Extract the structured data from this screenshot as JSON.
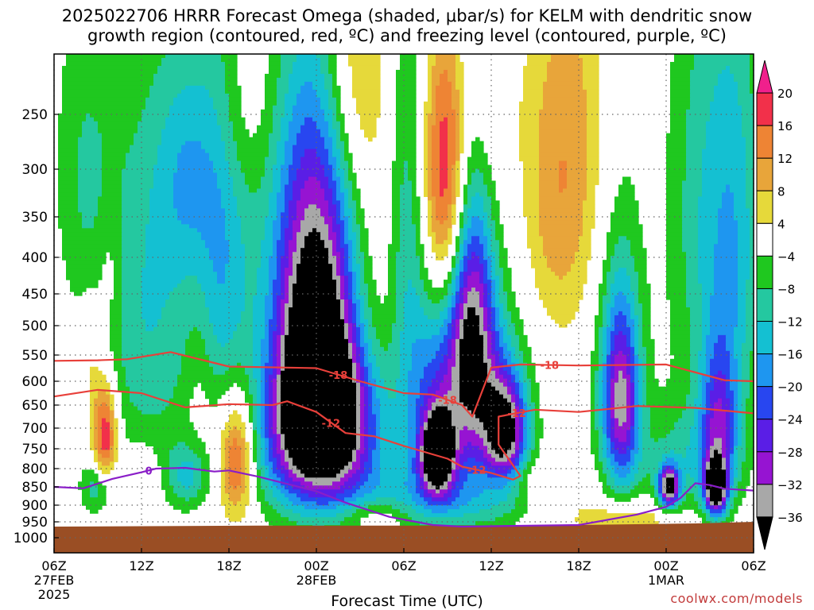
{
  "title": "2025022706 HRRR Forecast Omega (shaded, μbar/s) for KELM with dendritic snow\ngrowth region (contoured, red, ºC) and freezing level (contoured, purple, ºC)",
  "credit": "coolwx.com/models",
  "colors": {
    "ground": "#9a4e24",
    "isotherm": "#e8403a",
    "freezing": "#8a1ec8",
    "grid": "#666666"
  },
  "chart_data": {
    "type": "heatmap",
    "title": "2025022706 HRRR Forecast Omega (shaded, μbar/s) for KELM with dendritic snow growth region (contoured, red, ºC) and freezing level (contoured, purple, ºC)",
    "xlabel": "Forecast Time (UTC)",
    "ylabel": "",
    "x_ticks": [
      {
        "hour": 0,
        "label": "06Z",
        "sub1": "27FEB",
        "sub2": "2025"
      },
      {
        "hour": 6,
        "label": "12Z",
        "sub1": "",
        "sub2": ""
      },
      {
        "hour": 12,
        "label": "18Z",
        "sub1": "",
        "sub2": ""
      },
      {
        "hour": 18,
        "label": "00Z",
        "sub1": "28FEB",
        "sub2": ""
      },
      {
        "hour": 24,
        "label": "06Z",
        "sub1": "",
        "sub2": ""
      },
      {
        "hour": 30,
        "label": "12Z",
        "sub1": "",
        "sub2": ""
      },
      {
        "hour": 36,
        "label": "18Z",
        "sub1": "",
        "sub2": ""
      },
      {
        "hour": 42,
        "label": "00Z",
        "sub1": "1MAR",
        "sub2": ""
      },
      {
        "hour": 48,
        "label": "06Z",
        "sub1": "",
        "sub2": ""
      }
    ],
    "xlim": [
      0,
      48
    ],
    "y_axis": "pressure (hPa), reversed",
    "y_ticks": [
      250,
      300,
      350,
      400,
      450,
      500,
      550,
      600,
      650,
      700,
      750,
      800,
      850,
      900,
      950,
      1000
    ],
    "ylim": [
      1050,
      200
    ],
    "colorbar": {
      "labels": [
        "20",
        "16",
        "12",
        "8",
        "4",
        "−4",
        "−8",
        "−12",
        "−16",
        "−20",
        "−24",
        "−28",
        "−32",
        "−36"
      ],
      "bins": [
        {
          "lo": 20,
          "hi": null,
          "color": "#f0208c"
        },
        {
          "lo": 16,
          "hi": 20,
          "color": "#f2304a"
        },
        {
          "lo": 12,
          "hi": 16,
          "color": "#ee8434"
        },
        {
          "lo": 8,
          "hi": 12,
          "color": "#e8a53a"
        },
        {
          "lo": 4,
          "hi": 8,
          "color": "#e6d93a"
        },
        {
          "lo": -4,
          "hi": 4,
          "color": "#ffffff"
        },
        {
          "lo": -8,
          "hi": -4,
          "color": "#1fc81f"
        },
        {
          "lo": -12,
          "hi": -8,
          "color": "#24c8a0"
        },
        {
          "lo": -16,
          "hi": -12,
          "color": "#14c0d2"
        },
        {
          "lo": -20,
          "hi": -16,
          "color": "#1e96f0"
        },
        {
          "lo": -24,
          "hi": -20,
          "color": "#2846f0"
        },
        {
          "lo": -28,
          "hi": -24,
          "color": "#5a1ee6"
        },
        {
          "lo": -32,
          "hi": -28,
          "color": "#9614d2"
        },
        {
          "lo": -36,
          "hi": -32,
          "color": "#a8a8a8"
        },
        {
          "lo": null,
          "hi": -36,
          "color": "#000000"
        }
      ]
    },
    "omega_field": [
      {
        "hour": 18.7,
        "p": 670,
        "value": -40,
        "sx": 2.6,
        "sp": 140
      },
      {
        "hour": 18.0,
        "p": 540,
        "value": -22,
        "sx": 2.0,
        "sp": 160
      },
      {
        "hour": 17.6,
        "p": 400,
        "value": -14,
        "sx": 2.2,
        "sp": 160
      },
      {
        "hour": 18.8,
        "p": 300,
        "value": -10,
        "sx": 2.5,
        "sp": 120
      },
      {
        "hour": 17.5,
        "p": 770,
        "value": -12,
        "sx": 3.0,
        "sp": 120
      },
      {
        "hour": 20.5,
        "p": 220,
        "value": 12,
        "sx": 1.5,
        "sp": 80
      },
      {
        "hour": 21.5,
        "p": 450,
        "value": 8,
        "sx": 1.8,
        "sp": 200
      },
      {
        "hour": 27.0,
        "p": 320,
        "value": 22,
        "sx": 1.2,
        "sp": 100
      },
      {
        "hour": 28.5,
        "p": 380,
        "value": 6,
        "sx": 2.5,
        "sp": 160
      },
      {
        "hour": 35.5,
        "p": 280,
        "value": 8,
        "sx": 2.0,
        "sp": 140
      },
      {
        "hour": 34.0,
        "p": 350,
        "value": 5,
        "sx": 1.5,
        "sp": 120
      },
      {
        "hour": 38.0,
        "p": 330,
        "value": 5,
        "sx": 1.8,
        "sp": 200
      },
      {
        "hour": 26.3,
        "p": 760,
        "value": -38,
        "sx": 0.8,
        "sp": 70
      },
      {
        "hour": 26.2,
        "p": 630,
        "value": -18,
        "sx": 1.4,
        "sp": 160
      },
      {
        "hour": 24.3,
        "p": 380,
        "value": -12,
        "sx": 1.0,
        "sp": 200
      },
      {
        "hour": 28.7,
        "p": 540,
        "value": -28,
        "sx": 1.2,
        "sp": 160
      },
      {
        "hour": 28.4,
        "p": 350,
        "value": -12,
        "sx": 1.0,
        "sp": 160
      },
      {
        "hour": 31.0,
        "p": 710,
        "value": -32,
        "sx": 1.0,
        "sp": 90
      },
      {
        "hour": 30.0,
        "p": 620,
        "value": -12,
        "sx": 2.0,
        "sp": 200
      },
      {
        "hour": 26.0,
        "p": 870,
        "value": -12,
        "sx": 3.5,
        "sp": 70
      },
      {
        "hour": 38.9,
        "p": 640,
        "value": -28,
        "sx": 0.9,
        "sp": 140
      },
      {
        "hour": 38.5,
        "p": 450,
        "value": -10,
        "sx": 1.5,
        "sp": 250
      },
      {
        "hour": 42.2,
        "p": 850,
        "value": -36,
        "sx": 0.5,
        "sp": 40
      },
      {
        "hour": 45.4,
        "p": 850,
        "value": -40,
        "sx": 0.5,
        "sp": 50
      },
      {
        "hour": 45.6,
        "p": 700,
        "value": -22,
        "sx": 0.9,
        "sp": 130
      },
      {
        "hour": 45.0,
        "p": 350,
        "value": -12,
        "sx": 2.0,
        "sp": 200
      },
      {
        "hour": 43.5,
        "p": 780,
        "value": -10,
        "sx": 2.5,
        "sp": 100
      },
      {
        "hour": 47.0,
        "p": 400,
        "value": -8,
        "sx": 1.2,
        "sp": 200
      },
      {
        "hour": 3.5,
        "p": 720,
        "value": 22,
        "sx": 0.6,
        "sp": 90
      },
      {
        "hour": 2.5,
        "p": 560,
        "value": 6,
        "sx": 0.6,
        "sp": 80
      },
      {
        "hour": 3.8,
        "p": 420,
        "value": 5,
        "sx": 0.6,
        "sp": 60
      },
      {
        "hour": 12.5,
        "p": 770,
        "value": 22,
        "sx": 0.9,
        "sp": 110
      },
      {
        "hour": 10.0,
        "p": 600,
        "value": 5,
        "sx": 0.8,
        "sp": 140
      },
      {
        "hour": 9.2,
        "p": 820,
        "value": -12,
        "sx": 1.0,
        "sp": 60
      },
      {
        "hour": 3.0,
        "p": 850,
        "value": -12,
        "sx": 0.8,
        "sp": 50
      },
      {
        "hour": 6.0,
        "p": 820,
        "value": 6,
        "sx": 0.8,
        "sp": 60
      },
      {
        "hour": 6.5,
        "p": 480,
        "value": -12,
        "sx": 2.5,
        "sp": 220
      },
      {
        "hour": 11.5,
        "p": 400,
        "value": -14,
        "sx": 1.5,
        "sp": 200
      },
      {
        "hour": 9.0,
        "p": 300,
        "value": -9,
        "sx": 1.5,
        "sp": 80
      },
      {
        "hour": 2.0,
        "p": 300,
        "value": -7,
        "sx": 1.5,
        "sp": 120
      },
      {
        "hour": 32.5,
        "p": 830,
        "value": 6,
        "sx": 3.0,
        "sp": 40
      },
      {
        "hour": 39.0,
        "p": 940,
        "value": 10,
        "sx": 2.5,
        "sp": 40
      },
      {
        "hour": 22.0,
        "p": 930,
        "value": 6,
        "sx": 1.5,
        "sp": 30
      },
      {
        "hour": 13.0,
        "p": 240,
        "value": 5,
        "sx": 1.5,
        "sp": 60
      },
      {
        "hour": 29.0,
        "p": 240,
        "value": 5,
        "sx": 1.5,
        "sp": 60
      }
    ],
    "contours": [
      {
        "label": "-18",
        "color": "#e8403a",
        "points": [
          [
            0,
            561
          ],
          [
            3,
            560
          ],
          [
            5,
            558
          ],
          [
            8,
            545
          ],
          [
            12,
            572
          ],
          [
            18,
            575
          ],
          [
            21,
            600
          ],
          [
            24,
            625
          ],
          [
            26,
            628
          ],
          [
            28,
            650
          ],
          [
            28.7,
            675
          ],
          [
            30,
            574
          ],
          [
            32,
            568
          ],
          [
            36,
            570
          ],
          [
            42,
            568
          ],
          [
            46,
            598
          ],
          [
            48,
            600
          ]
        ]
      },
      {
        "label": "-12",
        "color": "#e8403a",
        "points": [
          [
            0,
            632
          ],
          [
            3,
            618
          ],
          [
            6,
            625
          ],
          [
            9,
            655
          ],
          [
            12,
            648
          ],
          [
            15,
            650
          ],
          [
            16,
            642
          ],
          [
            18,
            665
          ],
          [
            20,
            712
          ],
          [
            22,
            720
          ],
          [
            24,
            743
          ],
          [
            27,
            775
          ],
          [
            28,
            795
          ],
          [
            30,
            812
          ],
          [
            31.5,
            830
          ],
          [
            32,
            820
          ],
          [
            30.5,
            740
          ],
          [
            30.5,
            675
          ],
          [
            33,
            660
          ],
          [
            36,
            665
          ],
          [
            40,
            652
          ],
          [
            44,
            656
          ],
          [
            48,
            668
          ]
        ]
      },
      {
        "label": "0",
        "color": "#8a1ec8",
        "points": [
          [
            0,
            850
          ],
          [
            2,
            854
          ],
          [
            4,
            828
          ],
          [
            6,
            810
          ],
          [
            7,
            800
          ],
          [
            9,
            798
          ],
          [
            10,
            803
          ],
          [
            11,
            808
          ],
          [
            12,
            805
          ],
          [
            14,
            822
          ],
          [
            18,
            862
          ],
          [
            20,
            893
          ],
          [
            23,
            935
          ],
          [
            26,
            960
          ],
          [
            28,
            965
          ],
          [
            36,
            960
          ],
          [
            40,
            928
          ],
          [
            42,
            905
          ],
          [
            43,
            880
          ],
          [
            44,
            840
          ],
          [
            45,
            845
          ],
          [
            46,
            855
          ],
          [
            48,
            860
          ]
        ]
      }
    ]
  }
}
